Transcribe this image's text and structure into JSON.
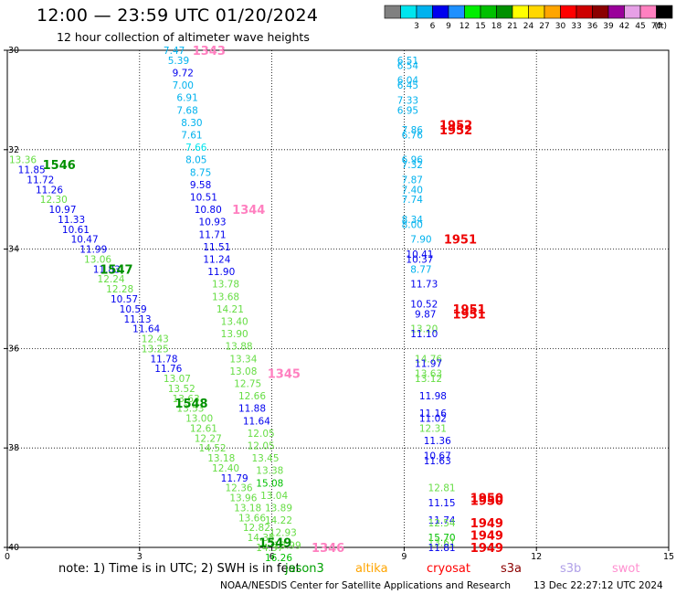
{
  "header": {
    "title": "12:00 — 23:59 UTC 01/20/2024",
    "subtitle": "12 hour collection of altimeter wave heights"
  },
  "legend": {
    "unit": "(ft)",
    "bins": [
      {
        "color": "#808080",
        "label": ""
      },
      {
        "color": "#00e5ee",
        "label": "3"
      },
      {
        "color": "#00b2ee",
        "label": "6"
      },
      {
        "color": "#0000ee",
        "label": "9"
      },
      {
        "color": "#1e90ff",
        "label": "12"
      },
      {
        "color": "#00ee00",
        "label": "15"
      },
      {
        "color": "#00c000",
        "label": "18"
      },
      {
        "color": "#009000",
        "label": "21"
      },
      {
        "color": "#ffff00",
        "label": "24"
      },
      {
        "color": "#ffd700",
        "label": "27"
      },
      {
        "color": "#ffa500",
        "label": "30"
      },
      {
        "color": "#ff0000",
        "label": "33"
      },
      {
        "color": "#cd0000",
        "label": "36"
      },
      {
        "color": "#8b0000",
        "label": "39"
      },
      {
        "color": "#9a009a",
        "label": "42"
      },
      {
        "color": "#e6a0e6",
        "label": "45"
      },
      {
        "color": "#ff80c0",
        "label": "70"
      },
      {
        "color": "#000000",
        "label": ""
      }
    ]
  },
  "axes": {
    "x_ticks": [
      "0",
      "3",
      "6",
      "9",
      "12",
      "15"
    ],
    "y_ticks": [
      "30",
      "32",
      "34",
      "36",
      "38",
      "40"
    ]
  },
  "note": {
    "prefix": "note:  1) Time is in UTC;  2) SWH is in feet",
    "satellites": [
      {
        "name": "jason3",
        "color": "#00a000"
      },
      {
        "name": "altika",
        "color": "#ffa500"
      },
      {
        "name": "cryosat",
        "color": "#ff0000"
      },
      {
        "name": "s3a",
        "color": "#8b0000"
      },
      {
        "name": "s3b",
        "color": "#b0a0e8"
      },
      {
        "name": "swot",
        "color": "#ff90d0"
      }
    ]
  },
  "footer": {
    "credit": "NOAA/NESDIS Center for Satellite Applications and Research",
    "stamp": "13 Dec 22:27:12 UTC 2024"
  },
  "map_data": {
    "x_range": [
      0,
      15
    ],
    "y_range": [
      30,
      40
    ],
    "tracks": [
      {
        "color": "#ff80c0",
        "labels": [
          {
            "text": "1343",
            "x": 4.2,
            "y": 30.0
          },
          {
            "text": "1344",
            "x": 5.1,
            "y": 33.2
          },
          {
            "text": "1345",
            "x": 5.9,
            "y": 36.5
          },
          {
            "text": "1346",
            "x": 6.9,
            "y": 40.0
          }
        ]
      },
      {
        "color": "#009000",
        "labels": [
          {
            "text": "1546",
            "x": 0.8,
            "y": 32.3
          },
          {
            "text": "1547",
            "x": 2.1,
            "y": 34.4
          },
          {
            "text": "1548",
            "x": 3.8,
            "y": 37.1
          },
          {
            "text": "1549",
            "x": 5.7,
            "y": 39.9
          }
        ]
      },
      {
        "color": "#ee0000",
        "labels": [
          {
            "text": "1952",
            "x": 9.8,
            "y": 31.5
          },
          {
            "text": "1952",
            "x": 9.8,
            "y": 31.6
          },
          {
            "text": "1951",
            "x": 9.9,
            "y": 33.8
          },
          {
            "text": "1951",
            "x": 10.1,
            "y": 35.2
          },
          {
            "text": "1951",
            "x": 10.1,
            "y": 35.3
          },
          {
            "text": "1950",
            "x": 10.5,
            "y": 39.0
          },
          {
            "text": "1950",
            "x": 10.5,
            "y": 39.05
          },
          {
            "text": "1949",
            "x": 10.5,
            "y": 39.5
          },
          {
            "text": "1949",
            "x": 10.5,
            "y": 39.75
          },
          {
            "text": "1949",
            "x": 10.5,
            "y": 40.0
          }
        ]
      }
    ],
    "obs": [
      {
        "x": 3.5,
        "y": 30.0,
        "v": "7.47",
        "c": "#00b2ee"
      },
      {
        "x": 3.6,
        "y": 30.2,
        "v": "5.39",
        "c": "#00b2ee"
      },
      {
        "x": 3.7,
        "y": 30.45,
        "v": "9.72",
        "c": "#0000ee"
      },
      {
        "x": 3.7,
        "y": 30.7,
        "v": "7.00",
        "c": "#00b2ee"
      },
      {
        "x": 3.8,
        "y": 30.95,
        "v": "6.91",
        "c": "#00b2ee"
      },
      {
        "x": 3.8,
        "y": 31.2,
        "v": "7.68",
        "c": "#00b2ee"
      },
      {
        "x": 3.9,
        "y": 31.45,
        "v": "8.30",
        "c": "#00b2ee"
      },
      {
        "x": 3.9,
        "y": 31.7,
        "v": "7.61",
        "c": "#00b2ee"
      },
      {
        "x": 4.0,
        "y": 31.95,
        "v": "7.66",
        "c": "#00e5ee"
      },
      {
        "x": 4.0,
        "y": 32.2,
        "v": "8.05",
        "c": "#00b2ee"
      },
      {
        "x": 4.1,
        "y": 32.45,
        "v": "8.75",
        "c": "#00b2ee"
      },
      {
        "x": 4.1,
        "y": 32.7,
        "v": "9.58",
        "c": "#0000ee"
      },
      {
        "x": 4.1,
        "y": 32.95,
        "v": "10.51",
        "c": "#0000ee"
      },
      {
        "x": 4.2,
        "y": 33.2,
        "v": "10.80",
        "c": "#0000ee"
      },
      {
        "x": 4.3,
        "y": 33.45,
        "v": "10.93",
        "c": "#0000ee"
      },
      {
        "x": 4.3,
        "y": 33.7,
        "v": "11.71",
        "c": "#0000ee"
      },
      {
        "x": 4.4,
        "y": 33.95,
        "v": "11.51",
        "c": "#0000ee"
      },
      {
        "x": 4.4,
        "y": 34.2,
        "v": "11.24",
        "c": "#0000ee"
      },
      {
        "x": 4.5,
        "y": 34.45,
        "v": "11.90",
        "c": "#0000ee"
      },
      {
        "x": 4.6,
        "y": 34.7,
        "v": "13.78",
        "c": "#66dd44"
      },
      {
        "x": 4.6,
        "y": 34.95,
        "v": "13.68",
        "c": "#66dd44"
      },
      {
        "x": 4.7,
        "y": 35.2,
        "v": "14.21",
        "c": "#66dd44"
      },
      {
        "x": 4.8,
        "y": 35.45,
        "v": "13.40",
        "c": "#66dd44"
      },
      {
        "x": 4.8,
        "y": 35.7,
        "v": "13.90",
        "c": "#66dd44"
      },
      {
        "x": 4.9,
        "y": 35.95,
        "v": "13.88",
        "c": "#66dd44"
      },
      {
        "x": 5.0,
        "y": 36.2,
        "v": "13.34",
        "c": "#66dd44"
      },
      {
        "x": 5.0,
        "y": 36.45,
        "v": "13.08",
        "c": "#66dd44"
      },
      {
        "x": 5.1,
        "y": 36.7,
        "v": "12.75",
        "c": "#66dd44"
      },
      {
        "x": 5.2,
        "y": 36.95,
        "v": "12.66",
        "c": "#66dd44"
      },
      {
        "x": 5.2,
        "y": 37.2,
        "v": "11.88",
        "c": "#0000ee"
      },
      {
        "x": 5.3,
        "y": 37.45,
        "v": "11.64",
        "c": "#0000ee"
      },
      {
        "x": 5.4,
        "y": 37.7,
        "v": "12.05",
        "c": "#66dd44"
      },
      {
        "x": 5.4,
        "y": 37.95,
        "v": "12.05",
        "c": "#66dd44"
      },
      {
        "x": 5.5,
        "y": 38.2,
        "v": "13.45",
        "c": "#66dd44"
      },
      {
        "x": 5.6,
        "y": 38.45,
        "v": "13.38",
        "c": "#66dd44"
      },
      {
        "x": 5.6,
        "y": 38.7,
        "v": "15.08",
        "c": "#00c000"
      },
      {
        "x": 5.7,
        "y": 38.95,
        "v": "13.04",
        "c": "#66dd44"
      },
      {
        "x": 5.8,
        "y": 39.2,
        "v": "13.89",
        "c": "#66dd44"
      },
      {
        "x": 5.8,
        "y": 39.45,
        "v": "14.22",
        "c": "#66dd44"
      },
      {
        "x": 5.9,
        "y": 39.7,
        "v": "12.93",
        "c": "#66dd44"
      },
      {
        "x": 6.0,
        "y": 39.95,
        "v": "13.99",
        "c": "#66dd44"
      },
      {
        "x": 0.0,
        "y": 32.2,
        "v": "13.36",
        "c": "#66dd44"
      },
      {
        "x": 0.2,
        "y": 32.4,
        "v": "11.85",
        "c": "#0000ee"
      },
      {
        "x": 0.4,
        "y": 32.6,
        "v": "11.72",
        "c": "#0000ee"
      },
      {
        "x": 0.6,
        "y": 32.8,
        "v": "11.26",
        "c": "#0000ee"
      },
      {
        "x": 0.7,
        "y": 33.0,
        "v": "12.30",
        "c": "#66dd44"
      },
      {
        "x": 0.9,
        "y": 33.2,
        "v": "10.97",
        "c": "#0000ee"
      },
      {
        "x": 1.1,
        "y": 33.4,
        "v": "11.33",
        "c": "#0000ee"
      },
      {
        "x": 1.2,
        "y": 33.6,
        "v": "10.61",
        "c": "#0000ee"
      },
      {
        "x": 1.4,
        "y": 33.8,
        "v": "10.47",
        "c": "#0000ee"
      },
      {
        "x": 1.6,
        "y": 34.0,
        "v": "11.99",
        "c": "#0000ee"
      },
      {
        "x": 1.7,
        "y": 34.2,
        "v": "13.06",
        "c": "#66dd44"
      },
      {
        "x": 1.9,
        "y": 34.4,
        "v": "11.83",
        "c": "#0000ee"
      },
      {
        "x": 2.0,
        "y": 34.6,
        "v": "12.24",
        "c": "#66dd44"
      },
      {
        "x": 2.2,
        "y": 34.8,
        "v": "12.28",
        "c": "#66dd44"
      },
      {
        "x": 2.3,
        "y": 35.0,
        "v": "10.57",
        "c": "#0000ee"
      },
      {
        "x": 2.5,
        "y": 35.2,
        "v": "10.59",
        "c": "#0000ee"
      },
      {
        "x": 2.6,
        "y": 35.4,
        "v": "11.13",
        "c": "#0000ee"
      },
      {
        "x": 2.8,
        "y": 35.6,
        "v": "11.64",
        "c": "#0000ee"
      },
      {
        "x": 3.0,
        "y": 35.8,
        "v": "12.43",
        "c": "#66dd44"
      },
      {
        "x": 3.0,
        "y": 36.0,
        "v": "13.25",
        "c": "#66dd44"
      },
      {
        "x": 3.2,
        "y": 36.2,
        "v": "11.78",
        "c": "#0000ee"
      },
      {
        "x": 3.3,
        "y": 36.4,
        "v": "11.76",
        "c": "#0000ee"
      },
      {
        "x": 3.5,
        "y": 36.6,
        "v": "13.07",
        "c": "#66dd44"
      },
      {
        "x": 3.6,
        "y": 36.8,
        "v": "13.52",
        "c": "#66dd44"
      },
      {
        "x": 3.7,
        "y": 37.0,
        "v": "13.63",
        "c": "#66dd44"
      },
      {
        "x": 3.8,
        "y": 37.2,
        "v": "13.53",
        "c": "#66dd44"
      },
      {
        "x": 4.0,
        "y": 37.4,
        "v": "13.00",
        "c": "#66dd44"
      },
      {
        "x": 4.1,
        "y": 37.6,
        "v": "12.61",
        "c": "#66dd44"
      },
      {
        "x": 4.2,
        "y": 37.8,
        "v": "12.27",
        "c": "#66dd44"
      },
      {
        "x": 4.3,
        "y": 38.0,
        "v": "14.52",
        "c": "#66dd44"
      },
      {
        "x": 4.5,
        "y": 38.2,
        "v": "13.18",
        "c": "#66dd44"
      },
      {
        "x": 4.6,
        "y": 38.4,
        "v": "12.40",
        "c": "#66dd44"
      },
      {
        "x": 4.8,
        "y": 38.6,
        "v": "11.79",
        "c": "#0000ee"
      },
      {
        "x": 4.9,
        "y": 38.8,
        "v": "12.36",
        "c": "#66dd44"
      },
      {
        "x": 5.0,
        "y": 39.0,
        "v": "13.96",
        "c": "#66dd44"
      },
      {
        "x": 5.1,
        "y": 39.2,
        "v": "13.18",
        "c": "#66dd44"
      },
      {
        "x": 5.2,
        "y": 39.4,
        "v": "13.66",
        "c": "#66dd44"
      },
      {
        "x": 5.3,
        "y": 39.6,
        "v": "12.82",
        "c": "#66dd44"
      },
      {
        "x": 5.4,
        "y": 39.8,
        "v": "14.35",
        "c": "#66dd44"
      },
      {
        "x": 5.6,
        "y": 40.0,
        "v": "14.37",
        "c": "#66dd44"
      },
      {
        "x": 5.8,
        "y": 40.2,
        "v": "16.26",
        "c": "#00c000"
      },
      {
        "x": 8.8,
        "y": 30.2,
        "v": "6.51",
        "c": "#00b2ee"
      },
      {
        "x": 8.8,
        "y": 30.3,
        "v": "6.54",
        "c": "#00b2ee"
      },
      {
        "x": 8.8,
        "y": 30.6,
        "v": "6.04",
        "c": "#00b2ee"
      },
      {
        "x": 8.8,
        "y": 30.7,
        "v": "6.45",
        "c": "#00b2ee"
      },
      {
        "x": 8.8,
        "y": 31.0,
        "v": "7.33",
        "c": "#00b2ee"
      },
      {
        "x": 8.8,
        "y": 31.2,
        "v": "6.95",
        "c": "#00b2ee"
      },
      {
        "x": 8.9,
        "y": 31.6,
        "v": "7.86",
        "c": "#00b2ee"
      },
      {
        "x": 8.9,
        "y": 31.7,
        "v": "6.76",
        "c": "#00b2ee"
      },
      {
        "x": 8.9,
        "y": 32.2,
        "v": "6.96",
        "c": "#00b2ee"
      },
      {
        "x": 8.9,
        "y": 32.3,
        "v": "7.32",
        "c": "#00b2ee"
      },
      {
        "x": 8.9,
        "y": 32.6,
        "v": "7.87",
        "c": "#00b2ee"
      },
      {
        "x": 8.9,
        "y": 32.8,
        "v": "7.40",
        "c": "#00b2ee"
      },
      {
        "x": 8.9,
        "y": 33.0,
        "v": "7.74",
        "c": "#00b2ee"
      },
      {
        "x": 8.9,
        "y": 33.4,
        "v": "8.34",
        "c": "#00b2ee"
      },
      {
        "x": 8.9,
        "y": 33.5,
        "v": "8.00",
        "c": "#00b2ee"
      },
      {
        "x": 9.1,
        "y": 33.8,
        "v": "7.90",
        "c": "#00b2ee"
      },
      {
        "x": 9.0,
        "y": 34.1,
        "v": "10.41",
        "c": "#0000ee"
      },
      {
        "x": 9.0,
        "y": 34.2,
        "v": "10.37",
        "c": "#0000ee"
      },
      {
        "x": 9.1,
        "y": 34.4,
        "v": "8.77",
        "c": "#00b2ee"
      },
      {
        "x": 9.1,
        "y": 34.7,
        "v": "11.73",
        "c": "#0000ee"
      },
      {
        "x": 9.1,
        "y": 35.1,
        "v": "10.52",
        "c": "#0000ee"
      },
      {
        "x": 9.2,
        "y": 35.3,
        "v": "9.87",
        "c": "#0000ee"
      },
      {
        "x": 9.1,
        "y": 35.6,
        "v": "13.20",
        "c": "#66dd44"
      },
      {
        "x": 9.1,
        "y": 35.7,
        "v": "11.10",
        "c": "#0000ee"
      },
      {
        "x": 9.2,
        "y": 36.2,
        "v": "14.76",
        "c": "#66dd44"
      },
      {
        "x": 9.2,
        "y": 36.3,
        "v": "11.97",
        "c": "#0000ee"
      },
      {
        "x": 9.2,
        "y": 36.5,
        "v": "13.63",
        "c": "#66dd44"
      },
      {
        "x": 9.2,
        "y": 36.6,
        "v": "13.12",
        "c": "#66dd44"
      },
      {
        "x": 9.3,
        "y": 36.95,
        "v": "11.98",
        "c": "#0000ee"
      },
      {
        "x": 9.3,
        "y": 37.3,
        "v": "11.16",
        "c": "#0000ee"
      },
      {
        "x": 9.3,
        "y": 37.4,
        "v": "11.02",
        "c": "#0000ee"
      },
      {
        "x": 9.3,
        "y": 37.6,
        "v": "12.31",
        "c": "#66dd44"
      },
      {
        "x": 9.4,
        "y": 37.85,
        "v": "11.36",
        "c": "#0000ee"
      },
      {
        "x": 9.4,
        "y": 38.15,
        "v": "10.67",
        "c": "#0000ee"
      },
      {
        "x": 9.4,
        "y": 38.25,
        "v": "11.63",
        "c": "#0000ee"
      },
      {
        "x": 9.5,
        "y": 38.8,
        "v": "12.81",
        "c": "#66dd44"
      },
      {
        "x": 9.5,
        "y": 39.1,
        "v": "11.15",
        "c": "#0000ee"
      },
      {
        "x": 9.5,
        "y": 39.45,
        "v": "11.74",
        "c": "#0000ee"
      },
      {
        "x": 9.5,
        "y": 39.5,
        "v": "12.54",
        "c": "#66dd44"
      },
      {
        "x": 9.5,
        "y": 39.8,
        "v": "15.70",
        "c": "#00c000"
      },
      {
        "x": 9.5,
        "y": 39.9,
        "v": "13.61",
        "c": "#66dd44"
      },
      {
        "x": 9.5,
        "y": 40.0,
        "v": "11.81",
        "c": "#0000ee"
      }
    ]
  }
}
